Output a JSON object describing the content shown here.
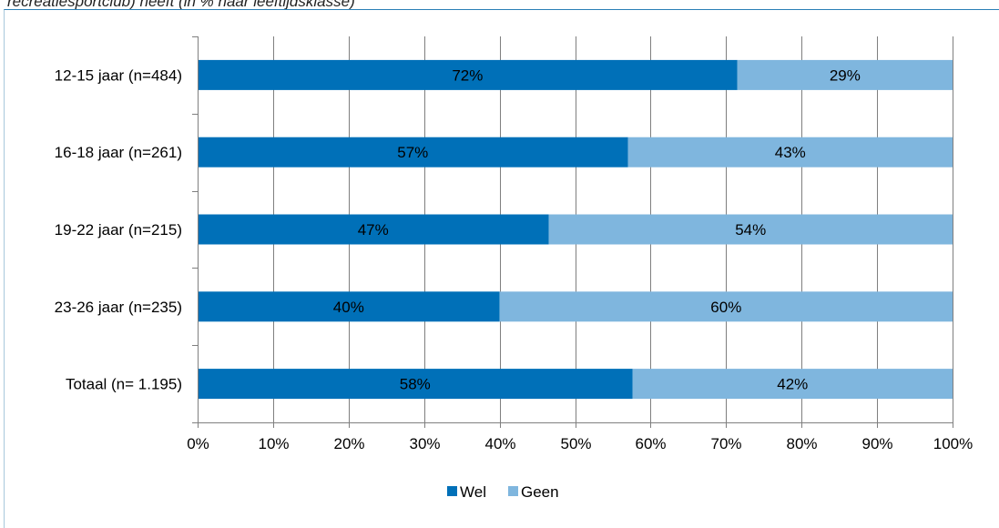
{
  "caption": "recreatiesportclub) heeft (in % naar leeftijdsklasse)",
  "colors": {
    "wel": "#0070b8",
    "geen": "#7fb6de",
    "axis": "#7f7f7f",
    "frame_left": "#a8c8dc",
    "frame_top": "#2a7fb6"
  },
  "chart_data": {
    "type": "bar",
    "orientation": "horizontal",
    "stacked": true,
    "categories": [
      "12-15 jaar (n=484)",
      "16-18 jaar (n=261)",
      "19-22 jaar (n=215)",
      "23-26 jaar (n=235)",
      "Totaal (n= 1.195)"
    ],
    "series": [
      {
        "name": "Wel",
        "values": [
          71.5,
          57,
          46.5,
          40,
          57.6
        ],
        "labels": [
          "72%",
          "57%",
          "47%",
          "40%",
          "58%"
        ]
      },
      {
        "name": "Geen",
        "values": [
          28.5,
          43,
          53.5,
          60,
          42.4
        ],
        "labels": [
          "29%",
          "43%",
          "54%",
          "60%",
          "42%"
        ]
      }
    ],
    "x_ticks": [
      "0%",
      "10%",
      "20%",
      "30%",
      "40%",
      "50%",
      "60%",
      "70%",
      "80%",
      "90%",
      "100%"
    ],
    "xlim": [
      0,
      100
    ],
    "grid": true,
    "legend_position": "bottom"
  }
}
